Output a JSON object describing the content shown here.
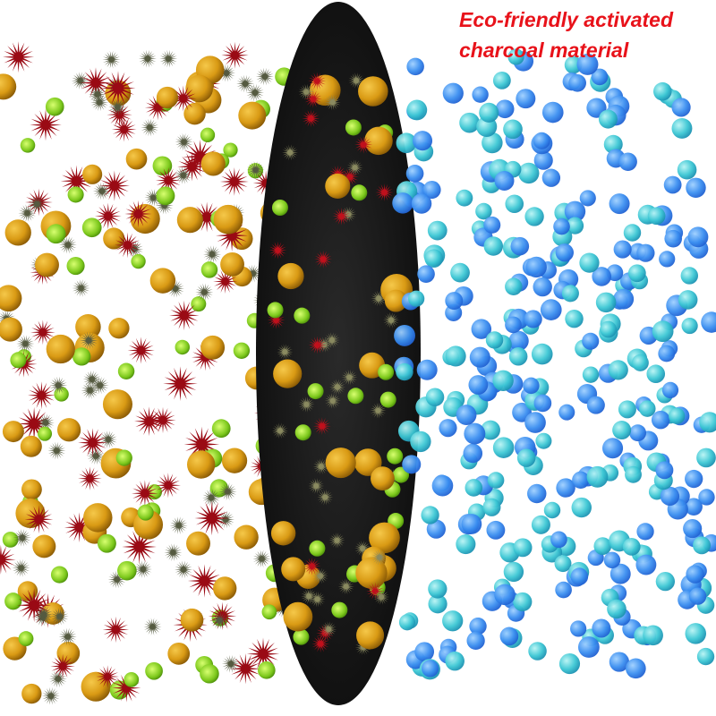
{
  "label": {
    "lines": [
      "Eco-friendly activated",
      "charcoal material"
    ]
  }
}
